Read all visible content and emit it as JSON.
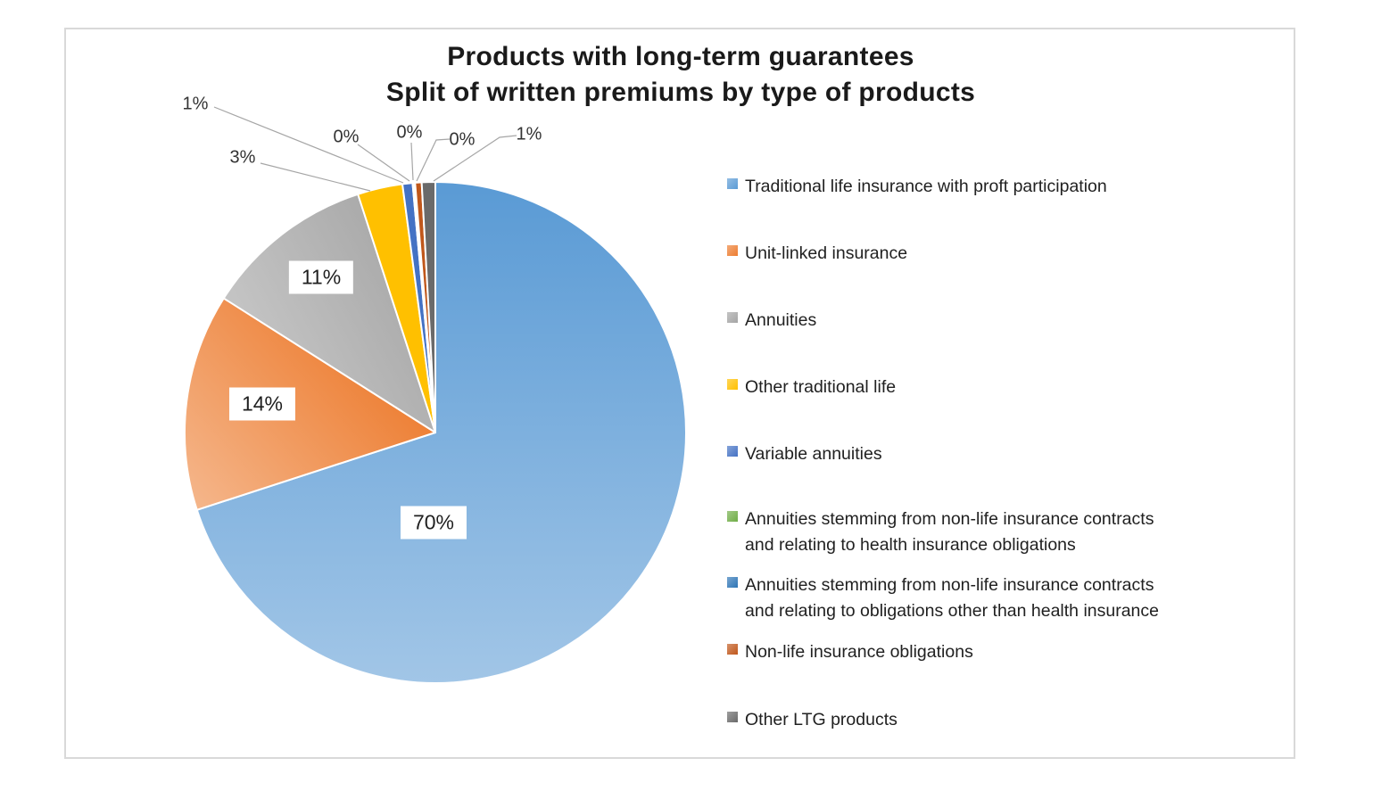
{
  "title": {
    "line1": "Products with long-term guarantees",
    "line2": "Split of written premiums by type of products"
  },
  "chart_data": {
    "type": "pie",
    "title": "Products with long-term guarantees",
    "subtitle": "Split of written premiums by type of products",
    "legend_position": "right",
    "start_angle": "12 o'clock",
    "direction": "clockwise",
    "label_style": "percent, outside with leader lines for small slices",
    "series": [
      {
        "label": "Traditional life insurance with proft participation",
        "display": "70%",
        "value": 70,
        "value_precise": 70.0,
        "color": "#5B9BD5"
      },
      {
        "label": "Unit-linked insurance",
        "display": "14%",
        "value": 14,
        "value_precise": 14.0,
        "color": "#ED7D31"
      },
      {
        "label": "Annuities",
        "display": "11%",
        "value": 11,
        "value_precise": 11.0,
        "color": "#A5A5A5"
      },
      {
        "label": "Other traditional life",
        "display": "3%",
        "value": 3,
        "value_precise": 2.9,
        "color": "#FFC000"
      },
      {
        "label": "Variable annuities",
        "display": "1%",
        "value": 1,
        "value_precise": 0.65,
        "color": "#4472C4"
      },
      {
        "label": "Annuities stemming from non-life insurance contracts\nand relating to health insurance obligations",
        "display": "0%",
        "value": 0,
        "value_precise": 0.08,
        "color": "#70AD47"
      },
      {
        "label": "Annuities stemming from non-life insurance contracts\nand relating to obligations other than health insurance",
        "display": "0%",
        "value": 0,
        "value_precise": 0.08,
        "color": "#2E75B6"
      },
      {
        "label": "Non-life insurance obligations",
        "display": "0%",
        "value": 0,
        "value_precise": 0.42,
        "color": "#C0571B"
      },
      {
        "label": "Other LTG products",
        "display": "1%",
        "value": 1,
        "value_precise": 0.87,
        "color": "#6A6A6A"
      }
    ],
    "colors": {
      "frame_border": "#D9D9D9",
      "leader_line": "#A6A6A6",
      "label_text": "#333333",
      "title_text": "#1A1A1A"
    }
  }
}
